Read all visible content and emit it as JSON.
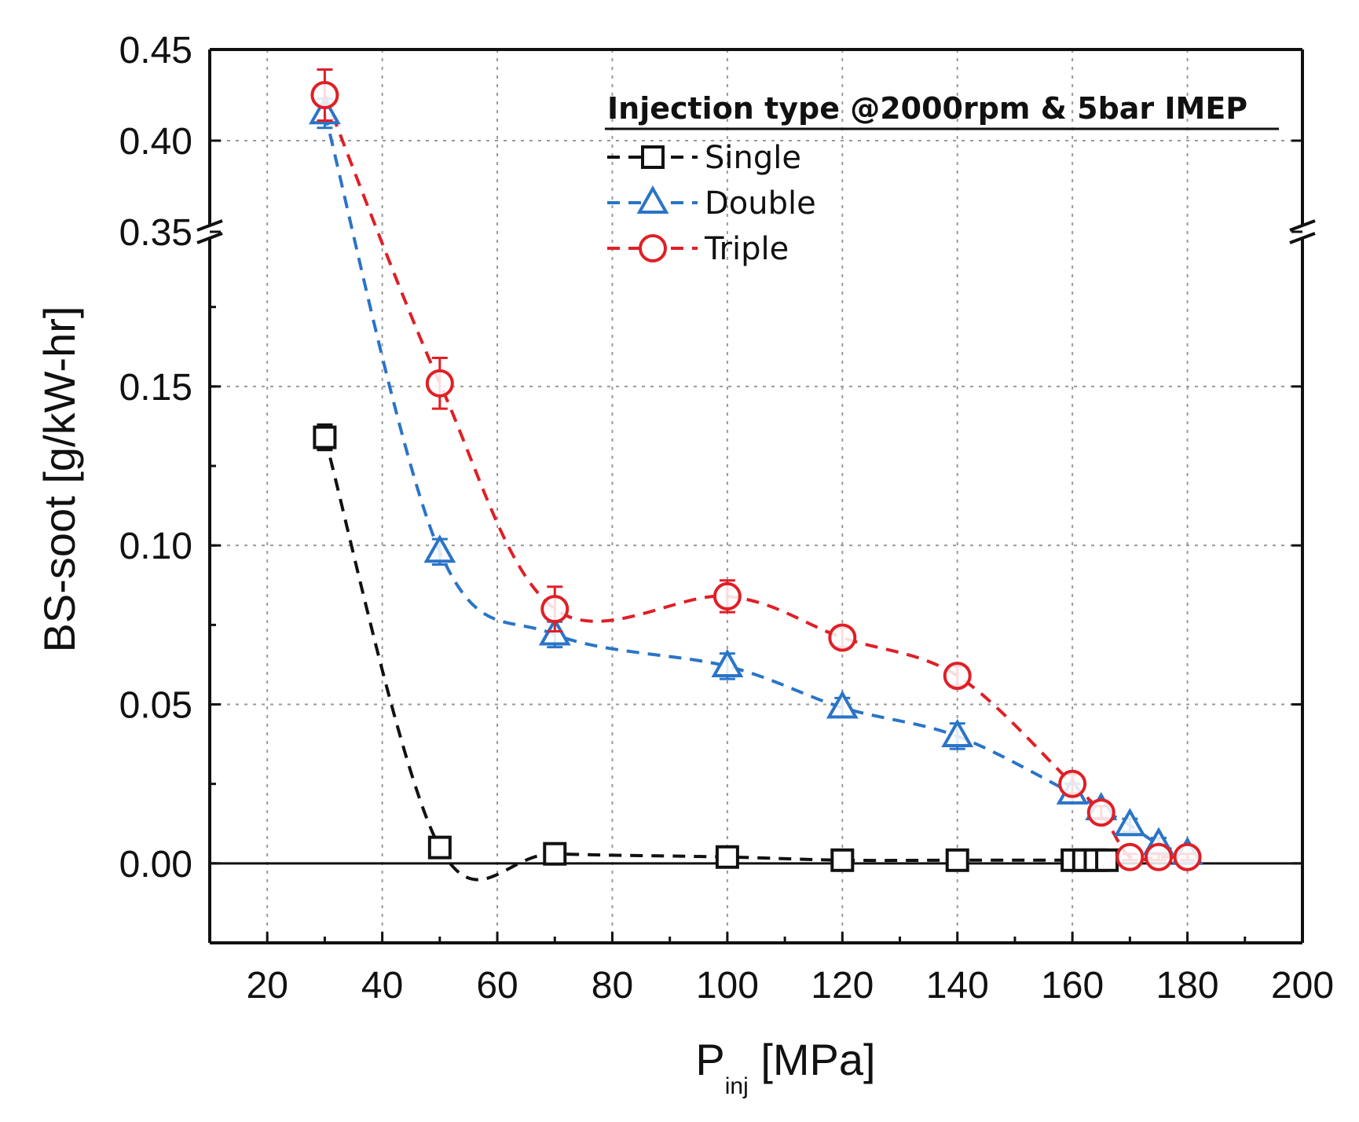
{
  "chart_data": {
    "type": "line",
    "title": "",
    "xlabel": {
      "main": "P",
      "sub": "inj",
      "unit": " [MPa]"
    },
    "ylabel": "BS-soot [g/kW-hr]",
    "xlim": [
      10,
      200
    ],
    "x_ticks": [
      20,
      40,
      60,
      80,
      100,
      120,
      140,
      160,
      180,
      200
    ],
    "y_axis_break": {
      "lower_range": [
        -0.025,
        0.19
      ],
      "upper_range": [
        0.35,
        0.45
      ],
      "lower_ticks": [
        0.0,
        0.05,
        0.1,
        0.15
      ],
      "lower_tick_labels": [
        "0.00",
        "0.05",
        "0.10",
        "0.15"
      ],
      "upper_ticks": [
        0.35,
        0.4,
        0.45
      ],
      "upper_tick_labels": [
        "0.35",
        "0.40",
        "0.45"
      ]
    },
    "grid": true,
    "zero_line": true,
    "legend": {
      "title": "Injection type @2000rpm & 5bar IMEP",
      "position": "top-right"
    },
    "series": [
      {
        "name": "Single",
        "color": "#111111",
        "marker": "square",
        "x": [
          30,
          50,
          70,
          100,
          120,
          140,
          160,
          162,
          164,
          166
        ],
        "y": [
          0.134,
          0.005,
          0.003,
          0.002,
          0.001,
          0.001,
          0.001,
          0.001,
          0.001,
          0.001
        ],
        "err": [
          0.004,
          0.003,
          0.002,
          0.001,
          0.001,
          0.001,
          0.001,
          0.001,
          0.001,
          0.001
        ]
      },
      {
        "name": "Double",
        "color": "#2a74c7",
        "marker": "triangle",
        "x": [
          30,
          50,
          70,
          100,
          120,
          140,
          160,
          165,
          170,
          175,
          180
        ],
        "y": [
          0.415,
          0.098,
          0.072,
          0.062,
          0.049,
          0.04,
          0.022,
          0.017,
          0.012,
          0.006,
          0.003
        ],
        "err": [
          0.008,
          0.004,
          0.004,
          0.004,
          0.003,
          0.004,
          0.003,
          0.002,
          0.002,
          0.002,
          0.002
        ]
      },
      {
        "name": "Triple",
        "color": "#e01f26",
        "marker": "circle",
        "x": [
          30,
          50,
          70,
          100,
          120,
          140,
          160,
          165,
          170,
          175,
          180
        ],
        "y": [
          0.425,
          0.151,
          0.08,
          0.084,
          0.071,
          0.059,
          0.025,
          0.016,
          0.002,
          0.002,
          0.002
        ],
        "err": [
          0.014,
          0.008,
          0.007,
          0.005,
          0.003,
          0.003,
          0.003,
          0.002,
          0.001,
          0.001,
          0.001
        ]
      }
    ]
  }
}
